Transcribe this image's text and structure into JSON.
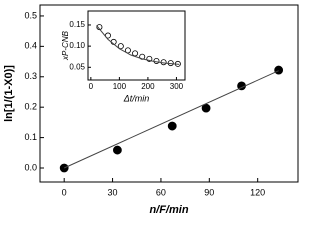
{
  "chart_data": [
    {
      "type": "scatter",
      "x_label": "n/F/min",
      "y_label": "ln[1/(1-X0)]",
      "xlim": [
        -15,
        145
      ],
      "ylim": [
        -0.046,
        0.536
      ],
      "xticks": [
        0,
        30,
        60,
        90,
        120
      ],
      "yticks": [
        {
          "value": 0,
          "label": "0.0"
        },
        0.1,
        0.2,
        0.3,
        0.4,
        0.5
      ],
      "series": [
        {
          "color": "#000000",
          "marker": "filled",
          "x": [
            0,
            33,
            67,
            88,
            110,
            133
          ],
          "values": [
            0.0,
            0.059,
            0.138,
            0.197,
            0.27,
            0.322
          ]
        },
        {
          "color": "#444444",
          "line": true,
          "x": [
            0,
            133
          ],
          "values": [
            0.0,
            0.32
          ]
        }
      ]
    },
    {
      "type": "scatter",
      "x_label": "Δt/min",
      "y_label": "xP-CNB",
      "xlim": [
        -10,
        330
      ],
      "ylim": [
        0.02,
        0.183
      ],
      "xticks": [
        0,
        100,
        200,
        300
      ],
      "yticks": [
        0.05,
        {
          "value": 0.1,
          "label": "0.10"
        },
        0.15
      ],
      "series": [
        {
          "color": "#000000",
          "marker": "open",
          "x": [
            30,
            60,
            80,
            105,
            130,
            155,
            180,
            205,
            230,
            255,
            280,
            305
          ],
          "values": [
            0.145,
            0.125,
            0.11,
            0.1,
            0.09,
            0.083,
            0.075,
            0.07,
            0.065,
            0.062,
            0.06,
            0.058
          ]
        },
        {
          "color": "#444444",
          "line": true,
          "x": [
            20,
            60,
            100,
            140,
            180,
            220,
            260,
            310
          ],
          "values": [
            0.149,
            0.116,
            0.094,
            0.079,
            0.07,
            0.064,
            0.06,
            0.057
          ]
        }
      ]
    }
  ]
}
